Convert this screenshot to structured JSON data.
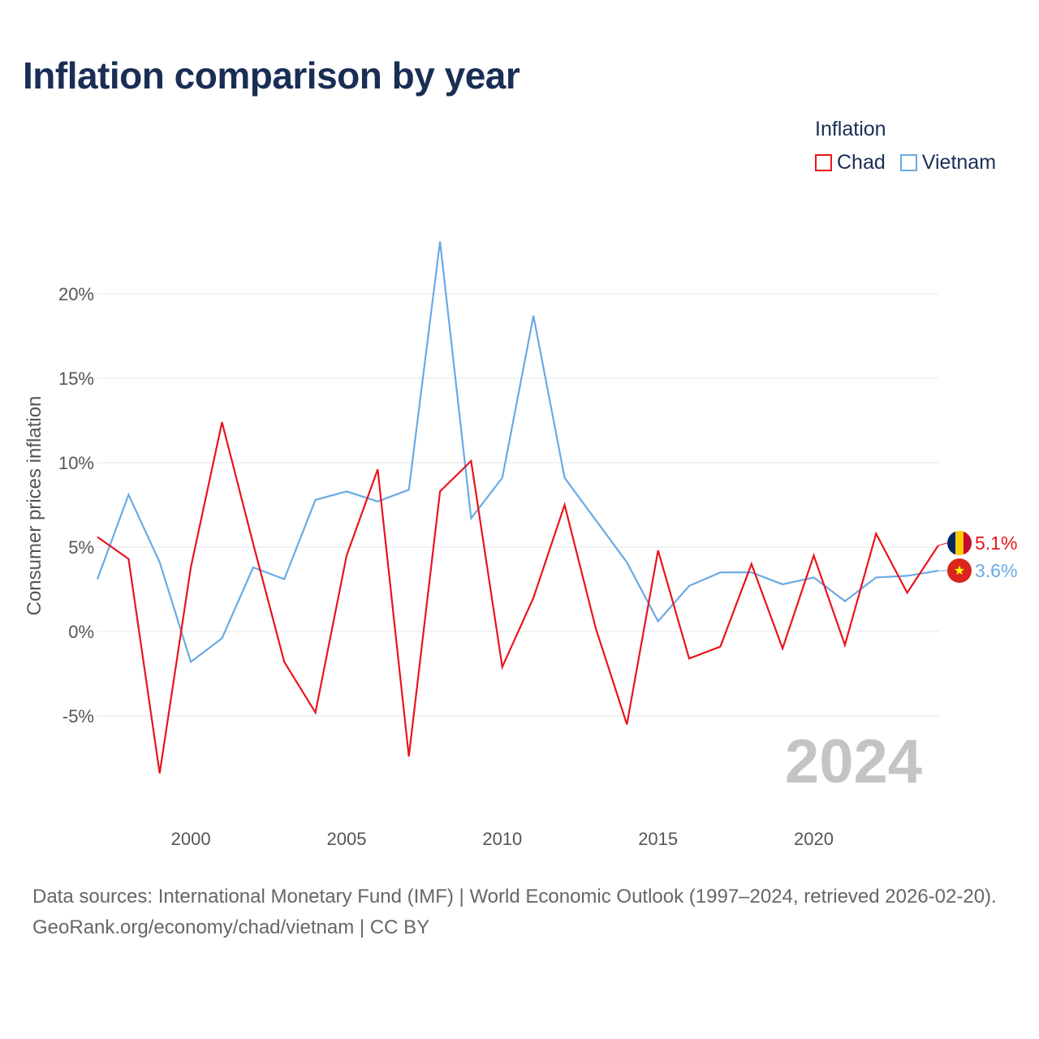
{
  "title": "Inflation comparison by year",
  "legend": {
    "title": "Inflation",
    "items": [
      {
        "label": "Chad",
        "color": "#e8141c"
      },
      {
        "label": "Vietnam",
        "color": "#6aaae4"
      }
    ]
  },
  "current_year_label": "2024",
  "footer": {
    "source": "Data sources: International Monetary Fund (IMF) | World Economic Outlook (1997–2024, retrieved 2026-02-20).",
    "credit": "GeoRank.org/economy/chad/vietnam | CC BY"
  },
  "chart_data": {
    "type": "line",
    "title": "Inflation comparison by year",
    "xlabel": "",
    "ylabel": "Consumer prices inflation",
    "xlim": [
      1997,
      2024
    ],
    "ylim": [
      -10,
      25
    ],
    "x_ticks": [
      2000,
      2005,
      2010,
      2015,
      2020
    ],
    "x_tick_labels": [
      "2000",
      "2005",
      "2010",
      "2015",
      "2020"
    ],
    "y_ticks": [
      -5,
      0,
      5,
      10,
      15,
      20
    ],
    "y_tick_labels": [
      "-5%",
      "0%",
      "5%",
      "10%",
      "15%",
      "20%"
    ],
    "x": [
      1997,
      1998,
      1999,
      2000,
      2001,
      2002,
      2003,
      2004,
      2005,
      2006,
      2007,
      2008,
      2009,
      2010,
      2011,
      2012,
      2013,
      2014,
      2015,
      2016,
      2017,
      2018,
      2019,
      2020,
      2021,
      2022,
      2023,
      2024
    ],
    "series": [
      {
        "name": "Chad",
        "color": "#e8141c",
        "end_label": "5.1%",
        "values": [
          5.6,
          4.3,
          -8.4,
          3.8,
          12.4,
          5.2,
          -1.8,
          -4.8,
          4.5,
          9.6,
          -7.4,
          8.3,
          10.1,
          -2.1,
          2.0,
          7.5,
          0.2,
          -5.5,
          4.8,
          -1.6,
          -0.9,
          4.0,
          -1.0,
          4.5,
          -0.8,
          5.8,
          2.3,
          5.1
        ]
      },
      {
        "name": "Vietnam",
        "color": "#6aaae4",
        "end_label": "3.6%",
        "values": [
          3.1,
          8.1,
          4.1,
          -1.8,
          -0.4,
          3.8,
          3.1,
          7.8,
          8.3,
          7.7,
          8.4,
          23.1,
          6.7,
          9.1,
          18.7,
          9.1,
          6.6,
          4.1,
          0.6,
          2.7,
          3.5,
          3.5,
          2.8,
          3.2,
          1.8,
          3.2,
          3.3,
          3.6
        ]
      }
    ]
  }
}
